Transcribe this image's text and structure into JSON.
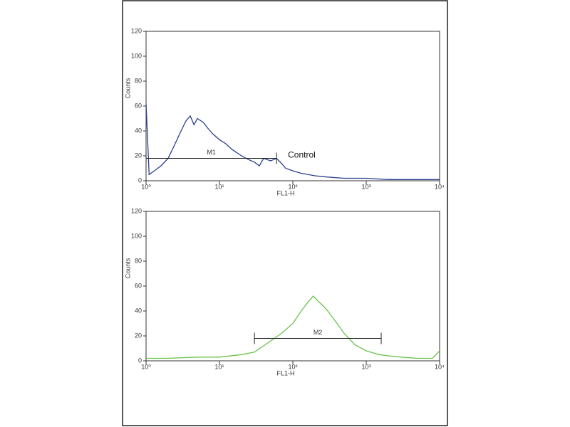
{
  "chart_data": [
    {
      "type": "line",
      "xscale": "log",
      "color": "#2a3f8f",
      "xlabel": "FL1-H",
      "ylabel": "Counts",
      "annotation": "Control",
      "xlim": [
        1,
        10000
      ],
      "ylim": [
        0,
        120
      ],
      "xticks": [
        {
          "value": 1,
          "label": "10⁰"
        },
        {
          "value": 10,
          "label": "10¹"
        },
        {
          "value": 100,
          "label": "10²"
        },
        {
          "value": 1000,
          "label": "10³"
        },
        {
          "value": 10000,
          "label": "10⁴"
        }
      ],
      "yticks": [
        0,
        20,
        40,
        60,
        80,
        100,
        120
      ],
      "x": [
        1,
        1.1,
        1.3,
        1.6,
        2,
        2.5,
        3,
        3.5,
        4,
        4.5,
        5,
        6,
        7,
        8,
        10,
        12,
        15,
        20,
        25,
        30,
        35,
        40,
        50,
        60,
        70,
        80,
        100,
        130,
        200,
        300,
        500,
        1000,
        2000,
        5000,
        10000
      ],
      "values": [
        62,
        5,
        8,
        12,
        18,
        30,
        40,
        48,
        52,
        45,
        50,
        47,
        42,
        38,
        33,
        30,
        25,
        20,
        17,
        15,
        12,
        18,
        16,
        18,
        14,
        10,
        8,
        6,
        4,
        3,
        2,
        2,
        1,
        1,
        1
      ],
      "markers": [
        {
          "label": "M1",
          "x": [
            1,
            60
          ],
          "y": 18
        }
      ]
    },
    {
      "type": "line",
      "xscale": "log",
      "color": "#6cc24a",
      "xlabel": "FL1-H",
      "ylabel": "Counts",
      "xlim": [
        1,
        10000
      ],
      "ylim": [
        0,
        120
      ],
      "xticks": [
        {
          "value": 1,
          "label": "10⁰"
        },
        {
          "value": 10,
          "label": "10¹"
        },
        {
          "value": 100,
          "label": "10²"
        },
        {
          "value": 1000,
          "label": "10³"
        },
        {
          "value": 10000,
          "label": "10⁴"
        }
      ],
      "yticks": [
        0,
        20,
        40,
        60,
        80,
        100,
        120
      ],
      "x": [
        1,
        2,
        5,
        10,
        20,
        30,
        40,
        50,
        70,
        100,
        130,
        160,
        190,
        220,
        260,
        300,
        400,
        500,
        700,
        1000,
        1500,
        2000,
        3000,
        5000,
        8000,
        10000
      ],
      "values": [
        2,
        2,
        3,
        3,
        5,
        7,
        12,
        16,
        22,
        30,
        40,
        47,
        52,
        48,
        44,
        40,
        30,
        22,
        13,
        8,
        5,
        4,
        3,
        2,
        2,
        8
      ],
      "markers": [
        {
          "label": "M2",
          "x": [
            30,
            1600
          ],
          "y": 18
        }
      ]
    }
  ]
}
